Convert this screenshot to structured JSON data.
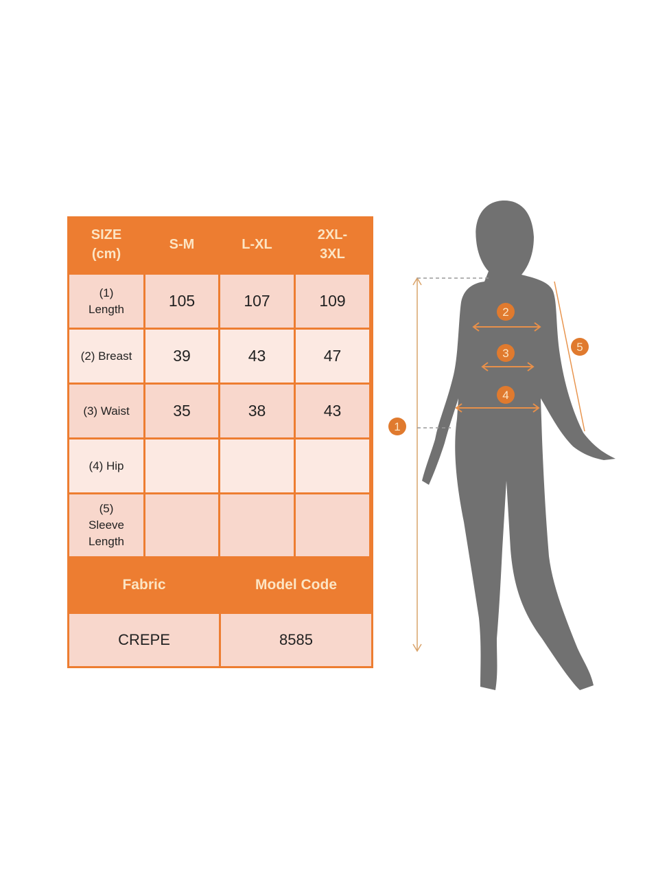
{
  "size_table": {
    "headers": [
      "SIZE\n(cm)",
      "S-M",
      "L-XL",
      "2XL-\n3XL"
    ],
    "rows": [
      {
        "label": "(1)\nLength",
        "values": [
          "105",
          "107",
          "109"
        ]
      },
      {
        "label": "(2) Breast",
        "values": [
          "39",
          "43",
          "47"
        ]
      },
      {
        "label": "(3) Waist",
        "values": [
          "35",
          "38",
          "43"
        ]
      },
      {
        "label": "(4) Hip",
        "values": [
          "",
          "",
          ""
        ]
      },
      {
        "label": "(5)\nSleeve\nLength",
        "values": [
          "",
          "",
          ""
        ]
      }
    ]
  },
  "info_table": {
    "headers": [
      "Fabric",
      "Model Code"
    ],
    "values": [
      "CREPE",
      "8585"
    ]
  },
  "figure": {
    "markers": [
      "1",
      "2",
      "3",
      "4",
      "5"
    ]
  },
  "colors": {
    "accent": "#ED7D31",
    "cell_dark": "#F8D7CC",
    "cell_light": "#FCE9E2",
    "header_text": "#FCE5C4",
    "silhouette": "#717171"
  }
}
